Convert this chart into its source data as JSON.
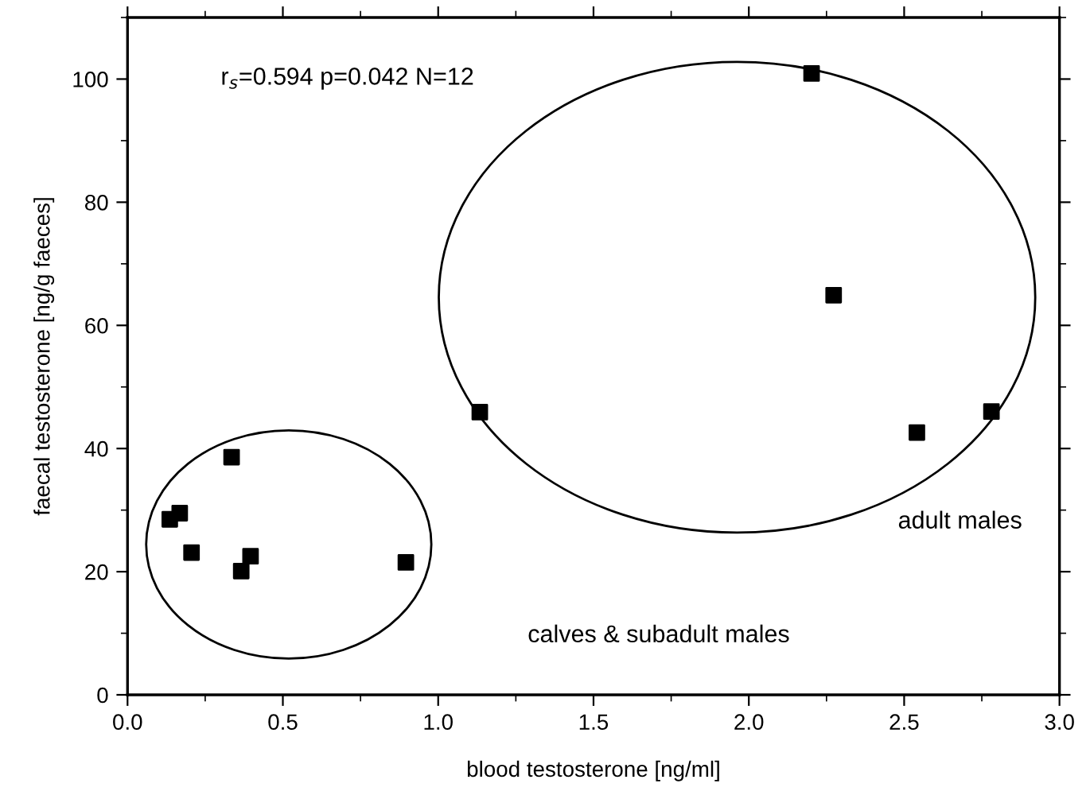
{
  "chart_data": {
    "type": "scatter",
    "xlabel": "blood testosterone [ng/ml]",
    "ylabel": "faecal testosterone [ng/g faeces]",
    "x": [
      0.136,
      0.168,
      0.206,
      0.335,
      0.366,
      0.396,
      0.896,
      1.134,
      2.202,
      2.273,
      2.541,
      2.781
    ],
    "series": [
      {
        "color": "#000000",
        "values": [
          28.5,
          29.5,
          23.1,
          38.6,
          20.1,
          22.5,
          21.5,
          45.9,
          100.9,
          64.9,
          42.6,
          46.0
        ]
      }
    ],
    "marker": "square",
    "xlim": [
      0,
      3
    ],
    "ylim": [
      0,
      110
    ],
    "xticks": [
      {
        "value": 0,
        "label": "0.0"
      },
      {
        "value": 0.5,
        "label": "0.5"
      },
      {
        "value": 1,
        "label": "1.0"
      },
      {
        "value": 1.5,
        "label": "1.5"
      },
      {
        "value": 2,
        "label": "2.0"
      },
      {
        "value": 2.5,
        "label": "2.5"
      },
      {
        "value": 3,
        "label": "3.0"
      }
    ],
    "yticks": [
      0,
      20,
      40,
      60,
      80,
      100
    ],
    "annotations": [
      "r$_{s}$=0.594 p=0.042 N=12",
      "calves & subadult males",
      "adult males"
    ],
    "grid": false,
    "legend": false
  }
}
